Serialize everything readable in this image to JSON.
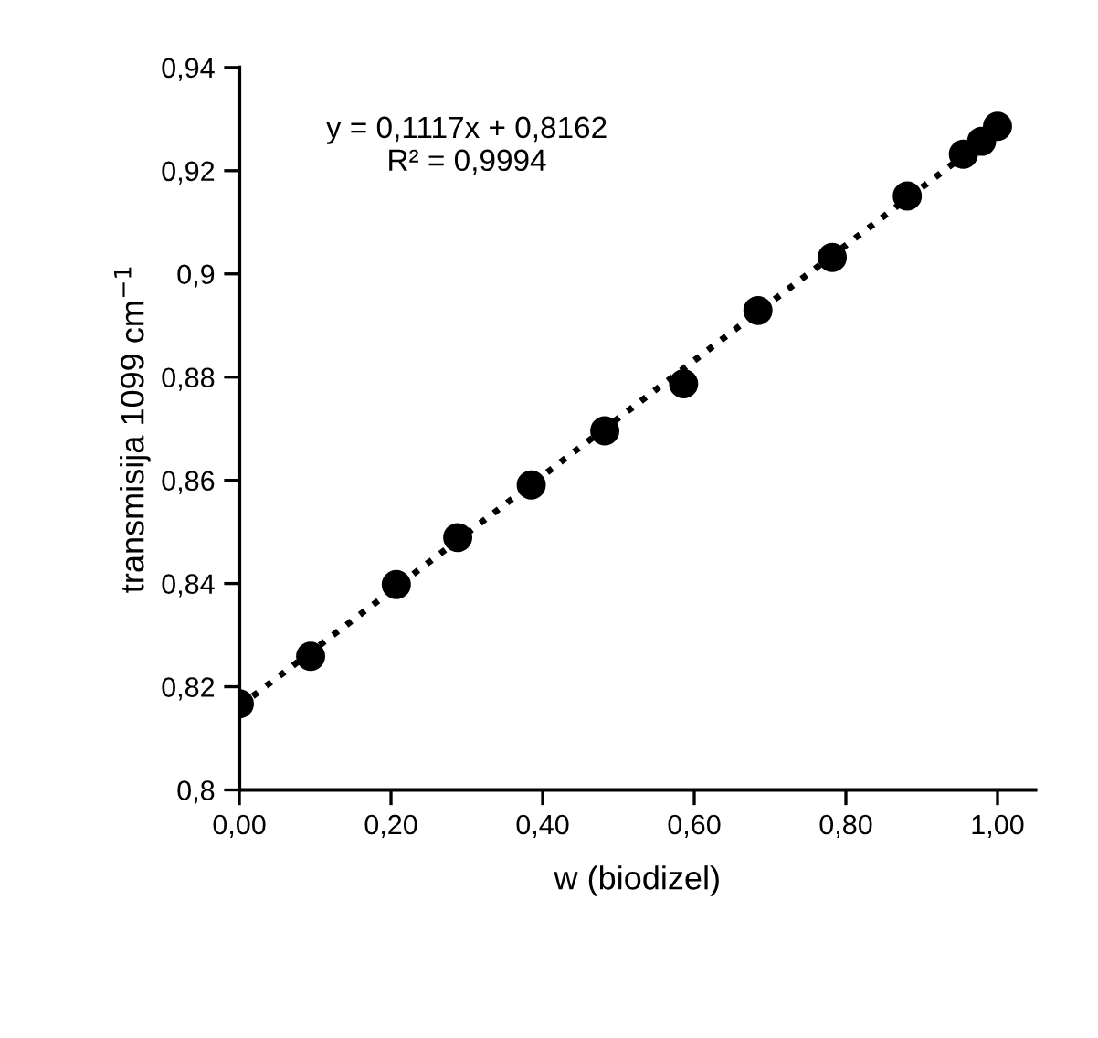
{
  "chart_data": {
    "type": "scatter",
    "xlabel": "w (biodizel)",
    "ylabel": "transmisija 1099 cm$^{−1}$",
    "x": [
      0,
      0.094,
      0.207,
      0.288,
      0.385,
      0.482,
      0.586,
      0.684,
      0.782,
      0.881,
      0.955,
      0.979,
      1.0
    ],
    "series": [
      {
        "color": "#000000",
        "marker": "circle",
        "values": [
          0.8167,
          0.8259,
          0.8398,
          0.8489,
          0.8591,
          0.8696,
          0.8787,
          0.8929,
          0.9032,
          0.9151,
          0.9232,
          0.9257,
          0.9286
        ]
      },
      {
        "type": "line",
        "color": "#000000",
        "line_style": "dotted",
        "x": [
          0,
          1
        ],
        "values": [
          0.8162,
          0.9279
        ]
      }
    ],
    "annotations": [
      {
        "text": "y = 0,1117x + 0,8162\nR² = 0,9994"
      }
    ],
    "xlim": [
      0,
      1.05
    ],
    "xticks": [
      {
        "value": 0,
        "label": "0,00"
      },
      {
        "value": 0.2,
        "label": "0,20"
      },
      {
        "value": 0.4,
        "label": "0,40"
      },
      {
        "value": 0.6,
        "label": "0,60"
      },
      {
        "value": 0.8,
        "label": "0,80"
      },
      {
        "value": 1.0,
        "label": "1,00"
      }
    ],
    "ylim": [
      0.8,
      0.94
    ],
    "yticks": [
      {
        "value": 0.8,
        "label": "0,8"
      },
      {
        "value": 0.82,
        "label": "0,82"
      },
      {
        "value": 0.84,
        "label": "0,84"
      },
      {
        "value": 0.86,
        "label": "0,86"
      },
      {
        "value": 0.88,
        "label": "0,88"
      },
      {
        "value": 0.9,
        "label": "0,9"
      },
      {
        "value": 0.92,
        "label": "0,92"
      },
      {
        "value": 0.94,
        "label": "0,94"
      }
    ],
    "grid": false,
    "legend": false
  }
}
